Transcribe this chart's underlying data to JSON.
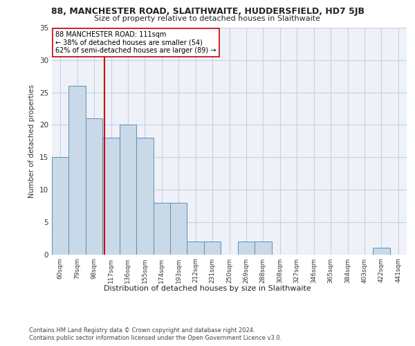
{
  "title1": "88, MANCHESTER ROAD, SLAITHWAITE, HUDDERSFIELD, HD7 5JB",
  "title2": "Size of property relative to detached houses in Slaithwaite",
  "xlabel": "Distribution of detached houses by size in Slaithwaite",
  "ylabel": "Number of detached properties",
  "categories": [
    "60sqm",
    "79sqm",
    "98sqm",
    "117sqm",
    "136sqm",
    "155sqm",
    "174sqm",
    "193sqm",
    "212sqm",
    "231sqm",
    "250sqm",
    "269sqm",
    "288sqm",
    "308sqm",
    "327sqm",
    "346sqm",
    "365sqm",
    "384sqm",
    "403sqm",
    "422sqm",
    "441sqm"
  ],
  "values": [
    15,
    26,
    21,
    18,
    20,
    18,
    8,
    8,
    2,
    2,
    0,
    2,
    2,
    0,
    0,
    0,
    0,
    0,
    0,
    1,
    0
  ],
  "bar_color": "#c9d9e8",
  "bar_edge_color": "#5b8db8",
  "vline_x": 2.62,
  "vline_color": "#cc0000",
  "annotation_text": "88 MANCHESTER ROAD: 111sqm\n← 38% of detached houses are smaller (54)\n62% of semi-detached houses are larger (89) →",
  "annotation_box_color": "#ffffff",
  "annotation_box_edge": "#cc0000",
  "ylim": [
    0,
    35
  ],
  "yticks": [
    0,
    5,
    10,
    15,
    20,
    25,
    30,
    35
  ],
  "footer1": "Contains HM Land Registry data © Crown copyright and database right 2024.",
  "footer2": "Contains public sector information licensed under the Open Government Licence v3.0.",
  "bg_color": "#eef2f8",
  "grid_color": "#c8d0e0"
}
